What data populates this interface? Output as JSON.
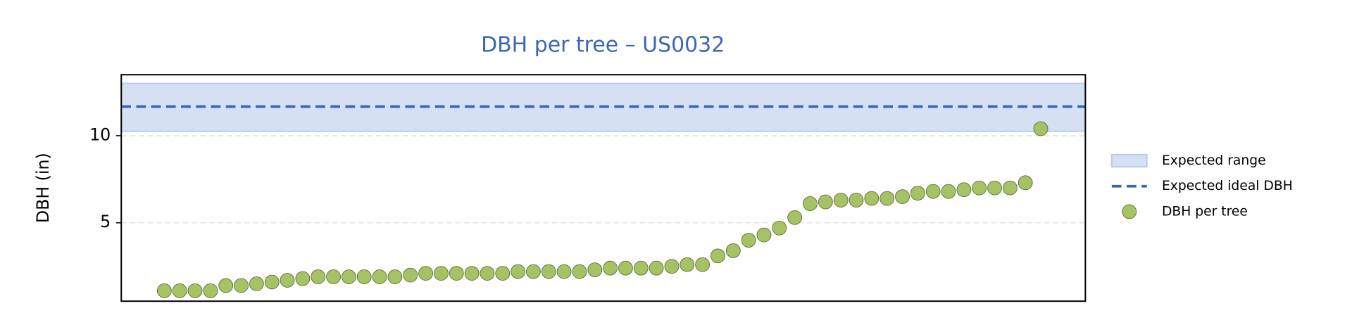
{
  "chart_data": {
    "type": "scatter",
    "title": "DBH per tree – US0032",
    "ylabel": "DBH (in)",
    "x": [
      0,
      1,
      2,
      3,
      4,
      5,
      6,
      7,
      8,
      9,
      10,
      11,
      12,
      13,
      14,
      15,
      16,
      17,
      18,
      19,
      20,
      21,
      22,
      23,
      24,
      25,
      26,
      27,
      28,
      29,
      30,
      31,
      32,
      33,
      34,
      35,
      36,
      37,
      38,
      39,
      40,
      41,
      42,
      43,
      44,
      45,
      46,
      47,
      48,
      49,
      50,
      51,
      52,
      53,
      54,
      55,
      56,
      57
    ],
    "xlim": [
      -2.8,
      59.9
    ],
    "ylim": [
      0.5,
      13.5
    ],
    "yticks": [
      5,
      10
    ],
    "grid": true,
    "expected_range": {
      "name": "Expected range",
      "values": [
        10.25,
        13.0
      ],
      "color": "#d6e0f3"
    },
    "expected_ideal": {
      "name": "Expected ideal DBH",
      "value": 11.67,
      "color": "#3a67b5"
    },
    "series": [
      {
        "name": "DBH per tree",
        "color": "#a5c264",
        "values": [
          1.1,
          1.1,
          1.1,
          1.1,
          1.4,
          1.4,
          1.5,
          1.6,
          1.7,
          1.8,
          1.9,
          1.9,
          1.9,
          1.9,
          1.9,
          1.9,
          2.0,
          2.1,
          2.1,
          2.1,
          2.1,
          2.1,
          2.1,
          2.2,
          2.2,
          2.2,
          2.2,
          2.2,
          2.3,
          2.4,
          2.4,
          2.4,
          2.4,
          2.5,
          2.6,
          2.6,
          3.1,
          3.4,
          4.0,
          4.3,
          4.7,
          5.3,
          6.1,
          6.2,
          6.3,
          6.3,
          6.4,
          6.4,
          6.5,
          6.7,
          6.8,
          6.8,
          6.9,
          7.0,
          7.0,
          7.0,
          7.3,
          10.4
        ]
      }
    ],
    "legend": "right"
  }
}
